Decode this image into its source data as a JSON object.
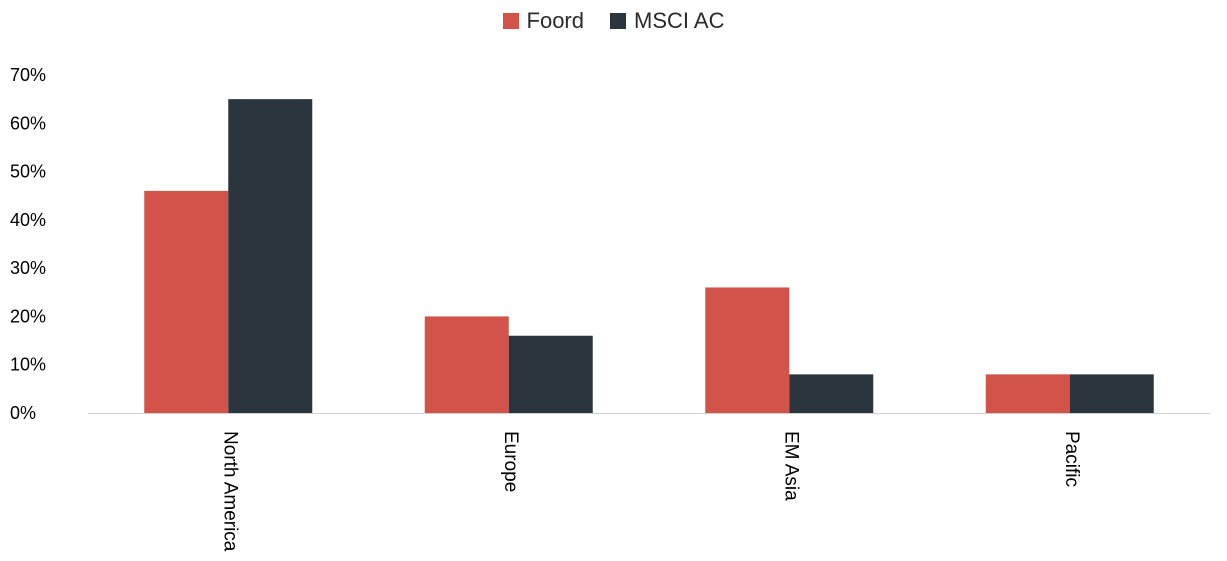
{
  "chart_data": {
    "type": "bar",
    "categories": [
      "North America",
      "Europe",
      "EM Asia",
      "Pacific"
    ],
    "series": [
      {
        "name": "Foord",
        "values": [
          46,
          20,
          26,
          8
        ],
        "color": "#d1534a"
      },
      {
        "name": "MSCI AC",
        "values": [
          65,
          16,
          8,
          8
        ],
        "color": "#2a353e"
      }
    ],
    "y_ticks": [
      "0%",
      "10%",
      "20%",
      "30%",
      "40%",
      "50%",
      "60%",
      "70%"
    ],
    "ylim": [
      0,
      70
    ],
    "grid": false,
    "legend_position": "top-center"
  }
}
